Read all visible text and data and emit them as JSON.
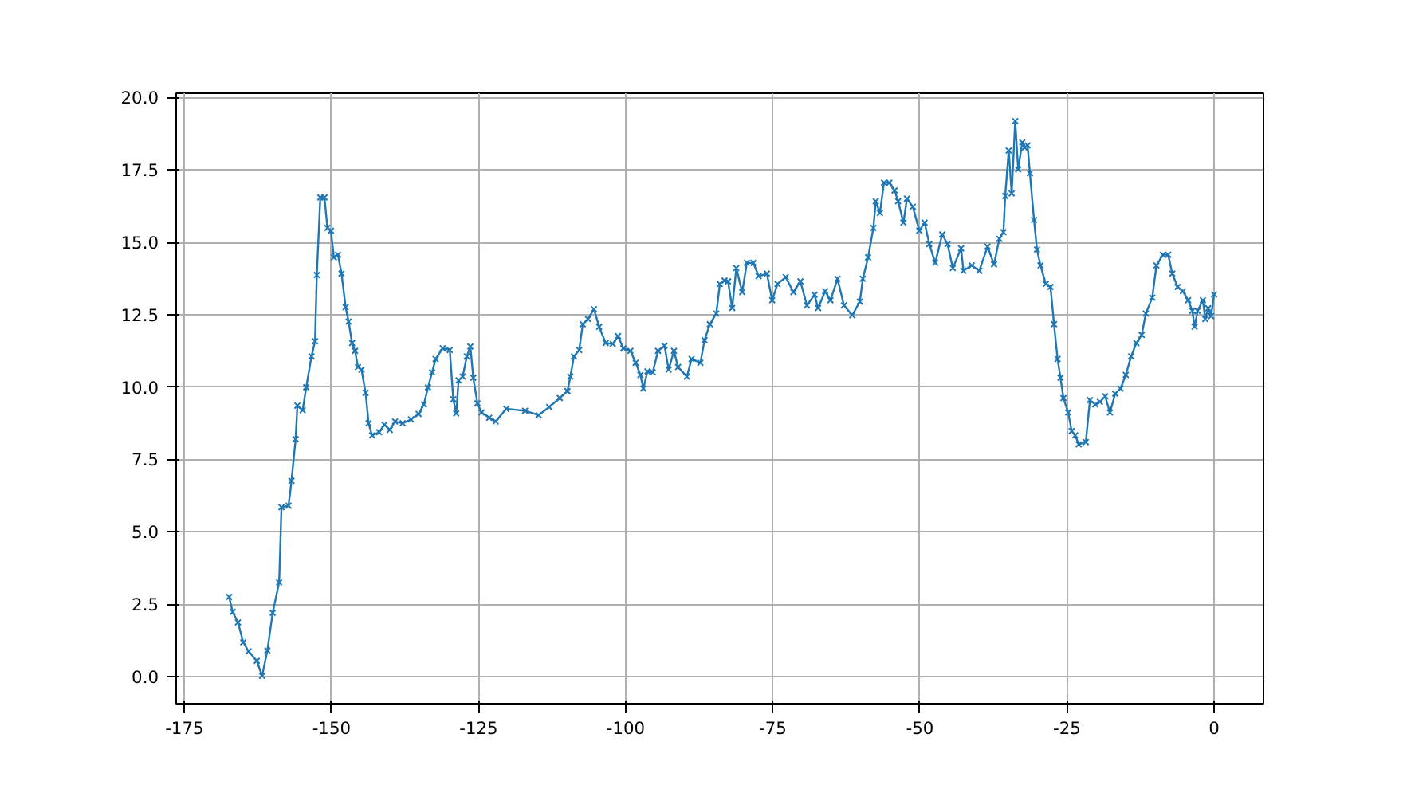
{
  "chart_data": {
    "type": "line",
    "marker": "cross",
    "grid": true,
    "xlim": [
      -176.4,
      8.4
    ],
    "ylim": [
      -0.94,
      20.15
    ],
    "xticks": [
      -175,
      -150,
      -125,
      -100,
      -75,
      -50,
      -25,
      0
    ],
    "yticks": [
      {
        "value": 0,
        "label": "0.0"
      },
      {
        "value": 2.5,
        "label": "2.5"
      },
      {
        "value": 5,
        "label": "5.0"
      },
      {
        "value": 7.5,
        "label": "7.5"
      },
      {
        "value": 10,
        "label": "10.0"
      },
      {
        "value": 12.5,
        "label": "12.5"
      },
      {
        "value": 15,
        "label": "15.0"
      },
      {
        "value": 17.5,
        "label": "17.5"
      },
      {
        "value": 20,
        "label": "20.0"
      }
    ],
    "series": [
      {
        "color": "#1f77b4",
        "x": [
          -167.4,
          -166.8,
          -165.9,
          -165,
          -164.1,
          -162.7,
          -161.8,
          -160.9,
          -160,
          -158.9,
          -158.5,
          -157.3,
          -156.8,
          -156.1,
          -155.8,
          -154.9,
          -154.3,
          -153.4,
          -152.8,
          -152.5,
          -151.9,
          -151.2,
          -150.7,
          -150.1,
          -149.6,
          -148.9,
          -148.3,
          -147.6,
          -147.1,
          -146.5,
          -146,
          -145.5,
          -144.9,
          -144.2,
          -143.7,
          -143.1,
          -141.9,
          -141,
          -140.1,
          -139.2,
          -137.9,
          -136.5,
          -135.2,
          -134.3,
          -133.6,
          -132.9,
          -132.3,
          -131.1,
          -129.9,
          -129.3,
          -128.8,
          -128.4,
          -127.7,
          -127,
          -126.4,
          -125.9,
          -125.2,
          -124.5,
          -123.2,
          -122.1,
          -120.3,
          -117.1,
          -114.8,
          -113,
          -111.2,
          -109.9,
          -109.4,
          -108.8,
          -107.9,
          -107.3,
          -106.4,
          -105.4,
          -104.5,
          -103.4,
          -102.2,
          -101.3,
          -100.4,
          -99.2,
          -98.3,
          -97.5,
          -97,
          -96.3,
          -95.4,
          -94.5,
          -93.4,
          -92.7,
          -91.8,
          -91.1,
          -89.6,
          -88.8,
          -87.3,
          -86.6,
          -85.7,
          -84.6,
          -84,
          -83.2,
          -82.6,
          -81.9,
          -81.2,
          -80.2,
          -79.4,
          -78.3,
          -77.4,
          -76,
          -75.1,
          -74.2,
          -72.8,
          -71.5,
          -70.3,
          -69.2,
          -67.9,
          -67.3,
          -66.1,
          -65.2,
          -64,
          -62.9,
          -61.5,
          -60.2,
          -59.7,
          -58.8,
          -57.9,
          -57.5,
          -56.8,
          -56.1,
          -55.2,
          -54.3,
          -53.7,
          -52.8,
          -52.2,
          -51.2,
          -50.1,
          -49.2,
          -48.4,
          -47.4,
          -46.2,
          -45.3,
          -44.4,
          -43,
          -42.6,
          -41.2,
          -39.9,
          -38.5,
          -37.4,
          -36.5,
          -35.8,
          -35.5,
          -34.9,
          -34.4,
          -33.8,
          -33.3,
          -32.6,
          -32.2,
          -31.7,
          -31.3,
          -30.6,
          -30.1,
          -29.5,
          -28.6,
          -27.8,
          -27.2,
          -26.6,
          -26.1,
          -25.6,
          -24.8,
          -24.2,
          -23.6,
          -23,
          -21.8,
          -21.1,
          -20.2,
          -19.4,
          -18.5,
          -17.7,
          -16.8,
          -15.9,
          -15,
          -14.1,
          -13.2,
          -12.3,
          -11.6,
          -10.5,
          -9.8,
          -8.7,
          -7.8,
          -7.1,
          -6.2,
          -5.3,
          -4.4,
          -3.7,
          -3.3,
          -2.8,
          -1.9,
          -1.5,
          -1,
          -0.5,
          0
        ],
        "values": [
          2.75,
          2.23,
          1.87,
          1.18,
          0.87,
          0.54,
          0.02,
          0.9,
          2.2,
          3.25,
          5.85,
          5.9,
          6.76,
          8.2,
          9.36,
          9.2,
          9.99,
          11.06,
          11.58,
          13.87,
          16.55,
          16.55,
          15.5,
          15.4,
          14.48,
          14.57,
          13.92,
          12.76,
          12.26,
          11.52,
          11.25,
          10.69,
          10.6,
          9.8,
          8.75,
          8.33,
          8.44,
          8.7,
          8.52,
          8.81,
          8.75,
          8.88,
          9.07,
          9.4,
          9.99,
          10.51,
          10.97,
          11.34,
          11.28,
          9.58,
          9.09,
          10.23,
          10.36,
          11.06,
          11.4,
          10.32,
          9.44,
          9.12,
          8.94,
          8.81,
          9.25,
          9.18,
          9.03,
          9.31,
          9.62,
          9.86,
          10.36,
          11.06,
          11.28,
          12.17,
          12.35,
          12.69,
          12.08,
          11.52,
          11.49,
          11.76,
          11.34,
          11.25,
          10.84,
          10.42,
          9.95,
          10.54,
          10.51,
          11.25,
          11.43,
          10.6,
          11.25,
          10.69,
          10.36,
          10.97,
          10.84,
          11.62,
          12.17,
          12.54,
          13.56,
          13.68,
          13.65,
          12.73,
          14.11,
          13.28,
          14.29,
          14.29,
          13.83,
          13.92,
          13,
          13.56,
          13.8,
          13.28,
          13.65,
          12.82,
          13.19,
          12.73,
          13.31,
          13,
          13.74,
          12.82,
          12.48,
          12.95,
          13.74,
          14.48,
          15.5,
          16.42,
          16.01,
          17.06,
          17.06,
          16.79,
          16.42,
          15.68,
          16.51,
          16.23,
          15.4,
          15.68,
          14.94,
          14.29,
          15.27,
          14.94,
          14.11,
          14.79,
          14.02,
          14.2,
          14.02,
          14.85,
          14.24,
          15.12,
          15.35,
          16.6,
          18.17,
          16.69,
          19.19,
          17.52,
          18.45,
          18.27,
          18.35,
          17.38,
          15.77,
          14.75,
          14.2,
          13.56,
          13.46,
          12.17,
          10.97,
          10.32,
          9.62,
          9.12,
          8.48,
          8.33,
          8.02,
          8.1,
          9.55,
          9.4,
          9.49,
          9.68,
          9.12,
          9.77,
          9.95,
          10.42,
          11.06,
          11.52,
          11.8,
          12.54,
          13.09,
          14.2,
          14.57,
          14.57,
          13.92,
          13.46,
          13.31,
          13,
          12.63,
          12.08,
          12.63,
          13,
          12.35,
          12.72,
          12.45,
          13.2
        ]
      }
    ]
  }
}
